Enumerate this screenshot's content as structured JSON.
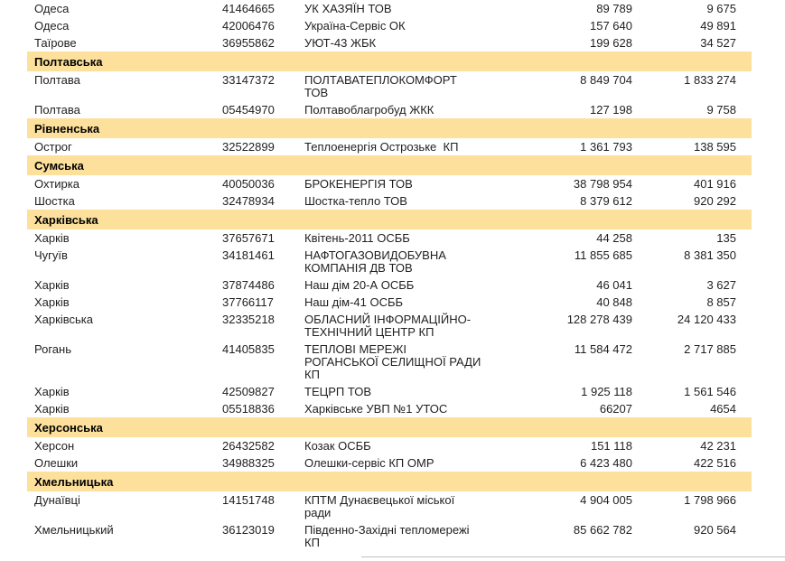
{
  "colors": {
    "region_row_bg": "#FDE09C",
    "bottom_rule": "#BFBFBF",
    "text": "#1F1F1F"
  },
  "table": {
    "rows": [
      {
        "type": "data",
        "city": "Одеса",
        "code": "41464665",
        "name_lines": [
          "УК ХАЗЯЇН ТОВ"
        ],
        "value1": "89 789",
        "value2": "9 675"
      },
      {
        "type": "data",
        "city": "Одеса",
        "code": "42006476",
        "name_lines": [
          "Україна-Сервіс ОК"
        ],
        "value1": "157 640",
        "value2": "49 891"
      },
      {
        "type": "data",
        "city": "Таїрове",
        "code": "36955862",
        "name_lines": [
          "УЮТ-43 ЖБК"
        ],
        "value1": "199 628",
        "value2": "34 527"
      },
      {
        "type": "region",
        "label": "Полтавська"
      },
      {
        "type": "data",
        "city": "Полтава",
        "code": "33147372",
        "name_lines": [
          "ПОЛТАВАТЕПЛОКОМФОРТ",
          "ТОВ"
        ],
        "value1": "8 849 704",
        "value2": "1 833 274"
      },
      {
        "type": "data",
        "city": "Полтава",
        "code": "05454970",
        "name_lines": [
          "Полтавоблагробуд ЖКК"
        ],
        "value1": "127 198",
        "value2": "9 758"
      },
      {
        "type": "region",
        "label": "Рівненська"
      },
      {
        "type": "data",
        "city": "Острог",
        "code": "32522899",
        "name_lines": [
          "Теплоенергія Острозьке  КП"
        ],
        "value1": "1 361 793",
        "value2": "138 595"
      },
      {
        "type": "region",
        "label": "Сумська"
      },
      {
        "type": "data",
        "city": "Охтирка",
        "code": "40050036",
        "name_lines": [
          "БРОКЕНЕРГІЯ ТОВ"
        ],
        "value1": "38 798 954",
        "value2": "401 916"
      },
      {
        "type": "data",
        "city": "Шостка",
        "code": "32478934",
        "name_lines": [
          "Шостка-тепло ТОВ"
        ],
        "value1": "8 379 612",
        "value2": "920 292"
      },
      {
        "type": "region",
        "label": "Харківська"
      },
      {
        "type": "data",
        "city": "Харків",
        "code": "37657671",
        "name_lines": [
          "Квітень-2011 ОСББ"
        ],
        "value1": "44 258",
        "value2": "135"
      },
      {
        "type": "data",
        "city": "Чугуїв",
        "code": "34181461",
        "name_lines": [
          "НАФТОГАЗОВИДОБУВНА",
          "КОМПАНІЯ ДВ ТОВ"
        ],
        "value1": "11 855 685",
        "value2": "8 381 350"
      },
      {
        "type": "data",
        "city": "Харків",
        "code": "37874486",
        "name_lines": [
          "Наш дім 20-А ОСББ"
        ],
        "value1": "46 041",
        "value2": "3 627"
      },
      {
        "type": "data",
        "city": "Харків",
        "code": "37766117",
        "name_lines": [
          "Наш дім-41 ОСББ"
        ],
        "value1": "40 848",
        "value2": "8 857"
      },
      {
        "type": "data",
        "city": "Харківська",
        "code": "32335218",
        "name_lines": [
          "ОБЛАСНИЙ ІНФОРМАЦІЙНО-",
          "ТЕХНІЧНИЙ ЦЕНТР КП"
        ],
        "value1": "128 278 439",
        "value2": "24 120 433"
      },
      {
        "type": "data",
        "city": "Рогань",
        "code": "41405835",
        "name_lines": [
          "ТЕПЛОВІ МЕРЕЖІ",
          "РОГАНСЬКОЇ СЕЛИЩНОЇ РАДИ",
          "КП"
        ],
        "value1": "11 584 472",
        "value2": "2 717 885"
      },
      {
        "type": "data",
        "city": "Харків",
        "code": "42509827",
        "name_lines": [
          "ТЕЦРП ТОВ"
        ],
        "value1": "1 925 118",
        "value2": "1 561 546"
      },
      {
        "type": "data",
        "city": "Харків",
        "code": "05518836",
        "name_lines": [
          "Харківське УВП №1 УТОС"
        ],
        "value1": "66207",
        "value2": "4654"
      },
      {
        "type": "region",
        "label": "Херсонська"
      },
      {
        "type": "data",
        "city": "Херсон",
        "code": "26432582",
        "name_lines": [
          "Козак ОСББ"
        ],
        "value1": "151 118",
        "value2": "42 231"
      },
      {
        "type": "data",
        "city": "Олешки",
        "code": "34988325",
        "name_lines": [
          "Олешки-сервіс КП ОМР"
        ],
        "value1": "6 423 480",
        "value2": "422 516"
      },
      {
        "type": "region",
        "label": "Хмельницька"
      },
      {
        "type": "data",
        "city": "Дунаївці",
        "code": "14151748",
        "name_lines": [
          "КПТМ Дунаєвецької міської",
          "ради"
        ],
        "value1": "4 904 005",
        "value2": "1 798 966"
      },
      {
        "type": "data",
        "city": "Хмельницький",
        "code": "36123019",
        "name_lines": [
          "Південно-Західні тепломережі",
          "КП"
        ],
        "value1": "85 662 782",
        "value2": "920 564"
      }
    ]
  }
}
